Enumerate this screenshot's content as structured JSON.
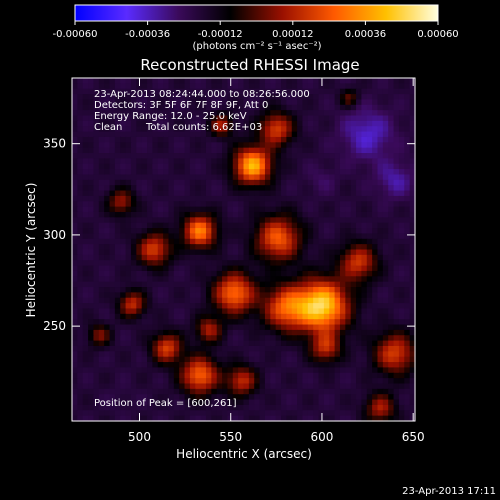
{
  "chart_data": {
    "type": "heatmap",
    "title": "Reconstructed RHESSI Image",
    "xlabel": "Heliocentric X (arcsec)",
    "ylabel": "Heliocentric Y (arcsec)",
    "xlim": [
      463,
      651
    ],
    "ylim": [
      198,
      386
    ],
    "x_ticks": [
      500,
      550,
      600,
      650
    ],
    "y_ticks": [
      250,
      300,
      350
    ],
    "grid": false,
    "colorbar": {
      "orientation": "horizontal",
      "placement": "top",
      "range": [
        -0.0006,
        0.0006
      ],
      "ticks": [
        "-0.00060",
        "-0.00036",
        "-0.00012",
        "0.00012",
        "0.00036",
        "0.00060"
      ],
      "unit_label": "(photons cm⁻² s⁻¹ asec⁻²)",
      "colors": [
        "#0000ff",
        "#5a2bff",
        "#3a0a5a",
        "#000000",
        "#9a1000",
        "#ff5a00",
        "#ffc000",
        "#ffffe0"
      ]
    },
    "annotations": {
      "time_range": "23-Apr-2013 08:24:44.000 to 08:26:56.000",
      "detectors": "Detectors: 3F 5F 6F 7F 8F 9F, Att 0",
      "energy_range": "Energy Range: 12.0 - 25.0 keV",
      "algorithm": "Clean",
      "total_counts": "Total counts: 6.62E+03",
      "peak_position": "Position of Peak = [600,261]"
    },
    "peak": {
      "x": 600,
      "y": 261
    },
    "sources": [
      {
        "x": 600,
        "y": 261,
        "r": 14,
        "v": 0.0006
      },
      {
        "x": 562,
        "y": 338,
        "r": 10,
        "v": 0.00052
      },
      {
        "x": 533,
        "y": 302,
        "r": 9,
        "v": 0.00042
      },
      {
        "x": 552,
        "y": 268,
        "r": 11,
        "v": 0.0004
      },
      {
        "x": 576,
        "y": 298,
        "r": 12,
        "v": 0.00036
      },
      {
        "x": 580,
        "y": 260,
        "r": 12,
        "v": 0.00034
      },
      {
        "x": 533,
        "y": 223,
        "r": 10,
        "v": 0.00038
      },
      {
        "x": 515,
        "y": 238,
        "r": 8,
        "v": 0.0003
      },
      {
        "x": 496,
        "y": 262,
        "r": 7,
        "v": 0.00026
      },
      {
        "x": 508,
        "y": 292,
        "r": 9,
        "v": 0.0003
      },
      {
        "x": 575,
        "y": 358,
        "r": 9,
        "v": 0.0003
      },
      {
        "x": 545,
        "y": 360,
        "r": 6,
        "v": 0.00022
      },
      {
        "x": 490,
        "y": 318,
        "r": 7,
        "v": 0.0002
      },
      {
        "x": 640,
        "y": 235,
        "r": 11,
        "v": 0.0003
      },
      {
        "x": 620,
        "y": 285,
        "r": 10,
        "v": 0.00028
      },
      {
        "x": 602,
        "y": 238,
        "r": 8,
        "v": 0.00024
      },
      {
        "x": 632,
        "y": 205,
        "r": 8,
        "v": 0.00022
      },
      {
        "x": 556,
        "y": 220,
        "r": 8,
        "v": 0.00026
      },
      {
        "x": 478,
        "y": 245,
        "r": 6,
        "v": 0.00016
      },
      {
        "x": 538,
        "y": 248,
        "r": 7,
        "v": 0.00022
      },
      {
        "x": 615,
        "y": 375,
        "r": 5,
        "v": 0.00012
      },
      {
        "x": 625,
        "y": 355,
        "r": 14,
        "v": -0.00026
      },
      {
        "x": 640,
        "y": 330,
        "r": 10,
        "v": -0.00022
      },
      {
        "x": 600,
        "y": 330,
        "r": 8,
        "v": -0.00014
      },
      {
        "x": 490,
        "y": 210,
        "r": 7,
        "v": -0.0001
      },
      {
        "x": 475,
        "y": 285,
        "r": 6,
        "v": -8e-05
      }
    ]
  },
  "footer": {
    "timestamp": "23-Apr-2013 17:11"
  }
}
